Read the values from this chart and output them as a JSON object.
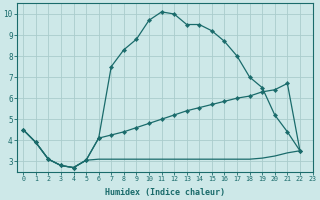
{
  "xlabel": "Humidex (Indice chaleur)",
  "background_color": "#cde8e8",
  "grid_color": "#aacccc",
  "line_color": "#1a6b6b",
  "xlim_min": -0.5,
  "xlim_max": 23.0,
  "ylim_min": 2.5,
  "ylim_max": 10.5,
  "xticks": [
    0,
    1,
    2,
    3,
    4,
    5,
    6,
    7,
    8,
    9,
    10,
    11,
    12,
    13,
    14,
    15,
    16,
    17,
    18,
    19,
    20,
    21,
    22,
    23
  ],
  "yticks": [
    3,
    4,
    5,
    6,
    7,
    8,
    9,
    10
  ],
  "line1_x": [
    0,
    1,
    2,
    3,
    4,
    5,
    6,
    7,
    8,
    9,
    10,
    11,
    12,
    13,
    14,
    15,
    16,
    17,
    18,
    19,
    20,
    21,
    22
  ],
  "line1_y": [
    4.5,
    3.9,
    3.1,
    2.8,
    2.7,
    3.05,
    4.1,
    7.5,
    8.3,
    8.8,
    9.7,
    10.1,
    10.0,
    9.5,
    9.5,
    9.2,
    8.7,
    8.0,
    7.0,
    6.5,
    5.2,
    4.4,
    3.5
  ],
  "line2_x": [
    0,
    1,
    2,
    3,
    4,
    5,
    6,
    7,
    8,
    9,
    10,
    11,
    12,
    13,
    14,
    15,
    16,
    17,
    18,
    19,
    20,
    21,
    22
  ],
  "line2_y": [
    4.5,
    3.9,
    3.1,
    2.8,
    2.7,
    3.05,
    4.1,
    4.25,
    4.4,
    4.6,
    4.8,
    5.0,
    5.2,
    5.4,
    5.55,
    5.7,
    5.85,
    6.0,
    6.1,
    6.3,
    6.4,
    6.7,
    3.5
  ],
  "line3_x": [
    0,
    1,
    2,
    3,
    4,
    5,
    6,
    7,
    8,
    9,
    10,
    11,
    12,
    13,
    14,
    15,
    16,
    17,
    18,
    19,
    20,
    21,
    22
  ],
  "line3_y": [
    4.5,
    3.9,
    3.1,
    2.8,
    2.7,
    3.05,
    3.1,
    3.1,
    3.1,
    3.1,
    3.1,
    3.1,
    3.1,
    3.1,
    3.1,
    3.1,
    3.1,
    3.1,
    3.1,
    3.15,
    3.25,
    3.4,
    3.5
  ],
  "marker_on_line1": true,
  "marker_on_line2": true,
  "marker_on_line3": false
}
